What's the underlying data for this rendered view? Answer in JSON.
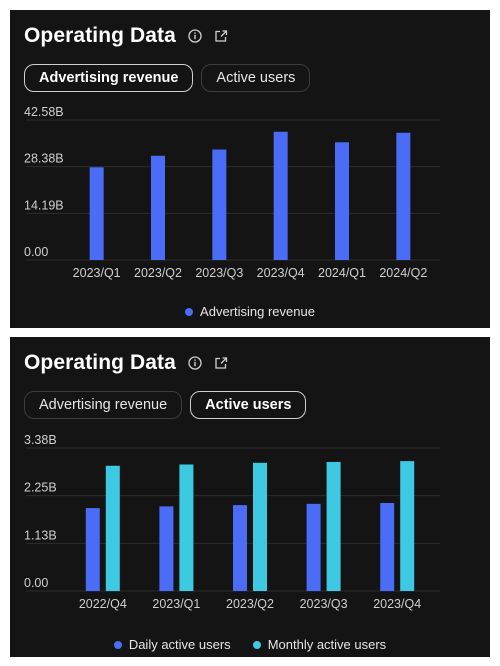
{
  "panels": [
    {
      "title": "Operating Data",
      "icons": [
        "info-icon",
        "share-icon"
      ],
      "tabs": [
        {
          "label": "Advertising revenue",
          "active": true
        },
        {
          "label": "Active users",
          "active": false
        }
      ],
      "legend": [
        {
          "label": "Advertising revenue",
          "color": "#4a6cf7"
        }
      ]
    },
    {
      "title": "Operating Data",
      "icons": [
        "info-icon",
        "share-icon"
      ],
      "tabs": [
        {
          "label": "Advertising revenue",
          "active": false
        },
        {
          "label": "Active users",
          "active": true
        }
      ],
      "legend": [
        {
          "label": "Daily active users",
          "color": "#4a6cf7"
        },
        {
          "label": "Monthly active users",
          "color": "#3ec9e3"
        }
      ]
    }
  ],
  "chart_data": [
    {
      "type": "bar",
      "categories": [
        "2023/Q1",
        "2023/Q2",
        "2023/Q3",
        "2023/Q4",
        "2024/Q1",
        "2024/Q2"
      ],
      "series": [
        {
          "name": "Advertising revenue",
          "color": "#4a6cf7",
          "values": [
            28.2,
            31.7,
            33.6,
            39.0,
            35.8,
            38.7
          ]
        }
      ],
      "yticks": [
        "0.00",
        "14.19B",
        "28.38B",
        "42.58B"
      ],
      "ylim": [
        0,
        42.58
      ],
      "unit": "B",
      "grid": true,
      "legend_position": "bottom"
    },
    {
      "type": "bar",
      "categories": [
        "2022/Q4",
        "2023/Q1",
        "2023/Q2",
        "2023/Q3",
        "2023/Q4"
      ],
      "series": [
        {
          "name": "Daily active users",
          "color": "#4a6cf7",
          "values": [
            1.96,
            2.0,
            2.03,
            2.06,
            2.08
          ]
        },
        {
          "name": "Monthly active users",
          "color": "#3ec9e3",
          "values": [
            2.96,
            2.99,
            3.03,
            3.05,
            3.07
          ]
        }
      ],
      "yticks": [
        "0.00",
        "1.13B",
        "2.25B",
        "3.38B"
      ],
      "ylim": [
        0,
        3.38
      ],
      "unit": "B",
      "grid": true,
      "legend_position": "bottom"
    }
  ]
}
